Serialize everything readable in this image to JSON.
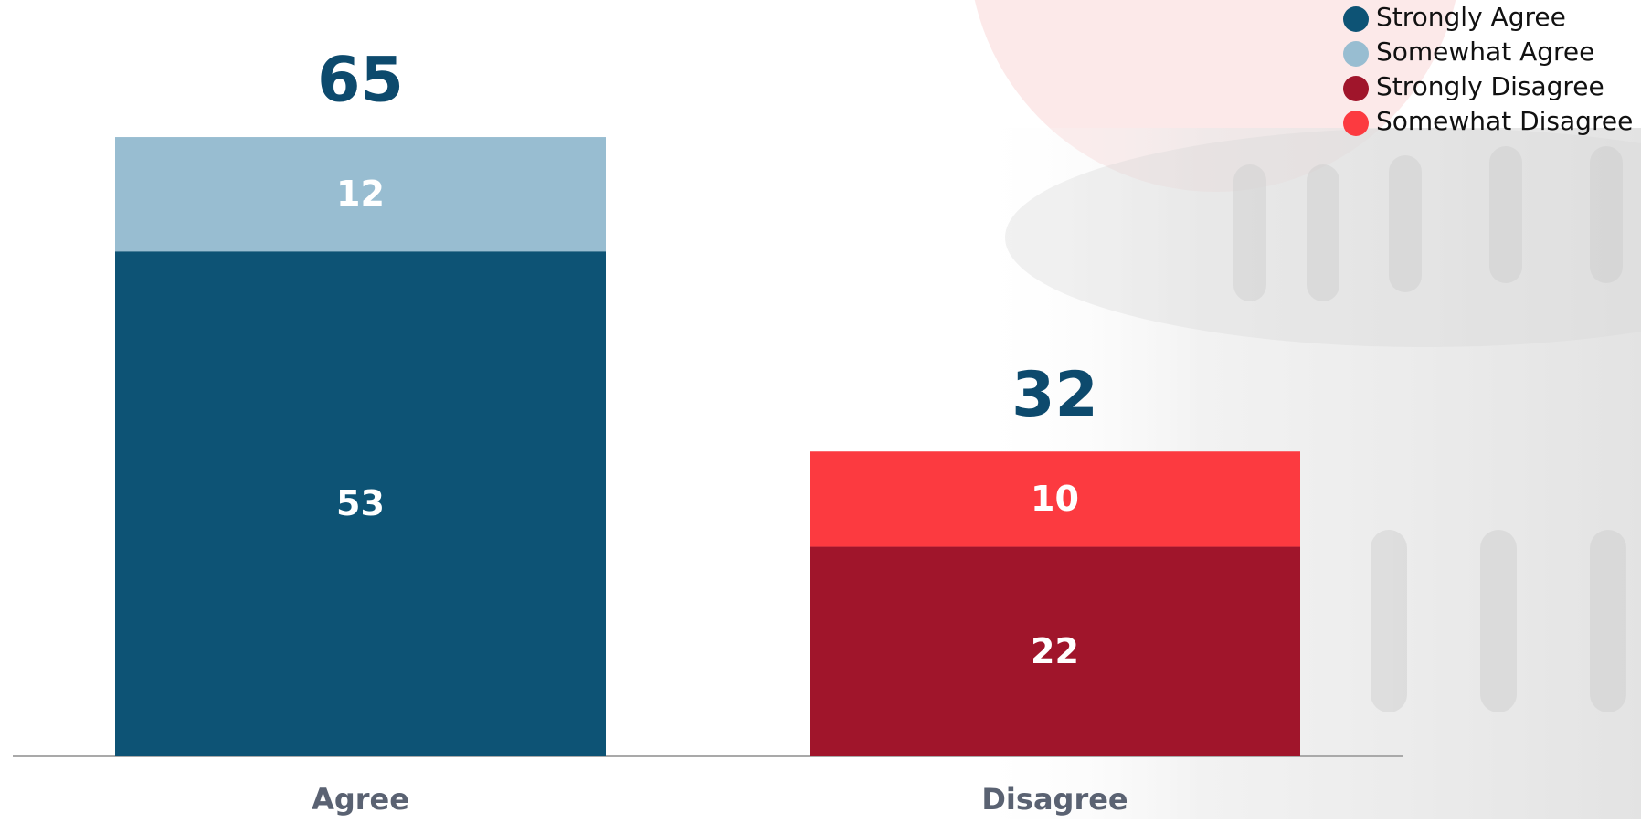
{
  "chart_data": {
    "type": "stacked-bar",
    "categories": [
      "Agree",
      "Disagree"
    ],
    "series": [
      {
        "name": "Strongly Agree",
        "color": "#0d5375",
        "values": [
          53,
          null
        ]
      },
      {
        "name": "Somewhat Agree",
        "color": "#98bdd1",
        "values": [
          12,
          null
        ]
      },
      {
        "name": "Strongly Disagree",
        "color": "#a0152b",
        "values": [
          null,
          22
        ]
      },
      {
        "name": "Somewhat Disagree",
        "color": "#fc3a40",
        "values": [
          null,
          10
        ]
      }
    ],
    "totals": [
      65,
      32
    ],
    "total_color": "#0d4a6d",
    "legend": "top-right"
  }
}
